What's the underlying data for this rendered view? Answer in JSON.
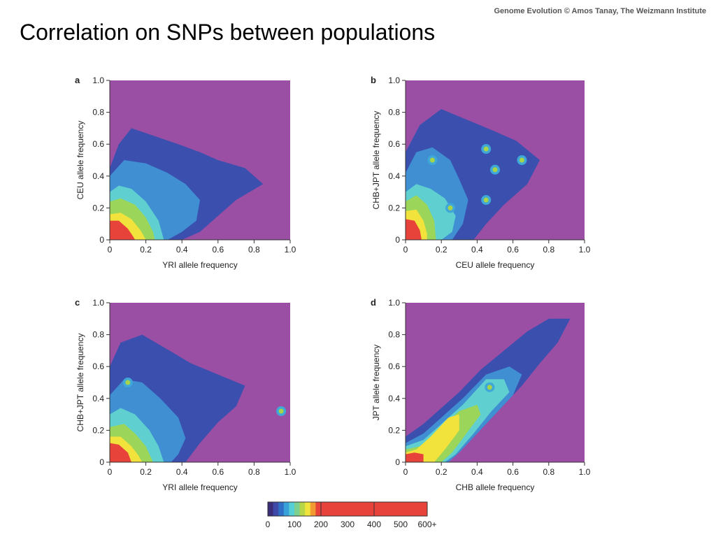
{
  "header": {
    "credit": "Genome Evolution © Amos Tanay, The Weizmann Institute",
    "title": "Correlation on SNPs between populations"
  },
  "colors": {
    "background_density": "#9b4fa4",
    "scale": [
      "#5c3f8a",
      "#3a55b8",
      "#2f74c9",
      "#3fa8d8",
      "#56d1d8",
      "#7fcf8a",
      "#a8d44a",
      "#f0e23a",
      "#f08f30",
      "#e53e35"
    ]
  },
  "chart_data": [
    {
      "type": "heatmap",
      "panel_label": "a",
      "xlabel": "YRI allele frequency",
      "ylabel": "CEU allele frequency",
      "xlim": [
        0,
        1.0
      ],
      "ylim": [
        0,
        1.0
      ],
      "xticks": [
        "0",
        "0.2",
        "0.4",
        "0.6",
        "0.8",
        "1.0"
      ],
      "yticks": [
        "0",
        "0.2",
        "0.4",
        "0.6",
        "0.8",
        "1.0"
      ],
      "density_contours": [
        {
          "level": 50,
          "points": [
            [
              0,
              0
            ],
            [
              0,
              0.45
            ],
            [
              0.05,
              0.6
            ],
            [
              0.12,
              0.7
            ],
            [
              0.25,
              0.65
            ],
            [
              0.38,
              0.6
            ],
            [
              0.5,
              0.55
            ],
            [
              0.6,
              0.5
            ],
            [
              0.75,
              0.45
            ],
            [
              0.85,
              0.35
            ],
            [
              0.7,
              0.25
            ],
            [
              0.6,
              0.15
            ],
            [
              0.5,
              0.05
            ],
            [
              0.4,
              0
            ]
          ]
        },
        {
          "level": 100,
          "points": [
            [
              0,
              0
            ],
            [
              0,
              0.4
            ],
            [
              0.08,
              0.5
            ],
            [
              0.2,
              0.48
            ],
            [
              0.32,
              0.42
            ],
            [
              0.42,
              0.35
            ],
            [
              0.5,
              0.25
            ],
            [
              0.48,
              0.12
            ],
            [
              0.4,
              0.05
            ],
            [
              0.32,
              0
            ]
          ]
        },
        {
          "level": 150,
          "points": [
            [
              0,
              0
            ],
            [
              0,
              0.3
            ],
            [
              0.05,
              0.34
            ],
            [
              0.12,
              0.32
            ],
            [
              0.2,
              0.24
            ],
            [
              0.27,
              0.12
            ],
            [
              0.3,
              0
            ]
          ]
        },
        {
          "level": 200,
          "points": [
            [
              0,
              0
            ],
            [
              0,
              0.24
            ],
            [
              0.06,
              0.26
            ],
            [
              0.14,
              0.22
            ],
            [
              0.2,
              0.14
            ],
            [
              0.24,
              0.05
            ],
            [
              0.25,
              0
            ]
          ]
        },
        {
          "level": 300,
          "points": [
            [
              0,
              0
            ],
            [
              0,
              0.16
            ],
            [
              0.06,
              0.17
            ],
            [
              0.12,
              0.13
            ],
            [
              0.17,
              0.06
            ],
            [
              0.2,
              0
            ]
          ]
        },
        {
          "level": 500,
          "points": [
            [
              0,
              0
            ],
            [
              0,
              0.12
            ],
            [
              0.05,
              0.12
            ],
            [
              0.1,
              0.07
            ],
            [
              0.13,
              0.02
            ],
            [
              0.14,
              0
            ]
          ]
        }
      ]
    },
    {
      "type": "heatmap",
      "panel_label": "b",
      "xlabel": "CEU allele frequency",
      "ylabel": "CHB+JPT allele frequency",
      "xlim": [
        0,
        1.0
      ],
      "ylim": [
        0,
        1.0
      ],
      "xticks": [
        "0",
        "0.2",
        "0.4",
        "0.6",
        "0.8",
        "1.0"
      ],
      "yticks": [
        "0",
        "0.2",
        "0.4",
        "0.6",
        "0.8",
        "1.0"
      ],
      "density_contours": [
        {
          "level": 50,
          "points": [
            [
              0,
              0
            ],
            [
              0,
              0.55
            ],
            [
              0.08,
              0.72
            ],
            [
              0.2,
              0.82
            ],
            [
              0.35,
              0.75
            ],
            [
              0.5,
              0.68
            ],
            [
              0.62,
              0.62
            ],
            [
              0.75,
              0.5
            ],
            [
              0.68,
              0.35
            ],
            [
              0.55,
              0.22
            ],
            [
              0.45,
              0.1
            ],
            [
              0.38,
              0
            ]
          ]
        },
        {
          "level": 100,
          "points": [
            [
              0,
              0
            ],
            [
              0,
              0.42
            ],
            [
              0.06,
              0.55
            ],
            [
              0.15,
              0.58
            ],
            [
              0.25,
              0.5
            ],
            [
              0.3,
              0.38
            ],
            [
              0.35,
              0.25
            ],
            [
              0.32,
              0.1
            ],
            [
              0.26,
              0
            ]
          ]
        },
        {
          "level": 150,
          "points": [
            [
              0,
              0
            ],
            [
              0,
              0.3
            ],
            [
              0.06,
              0.35
            ],
            [
              0.14,
              0.32
            ],
            [
              0.22,
              0.26
            ],
            [
              0.28,
              0.15
            ],
            [
              0.26,
              0.05
            ],
            [
              0.2,
              0
            ]
          ]
        },
        {
          "level": 200,
          "points": [
            [
              0,
              0
            ],
            [
              0,
              0.24
            ],
            [
              0.06,
              0.28
            ],
            [
              0.12,
              0.22
            ],
            [
              0.16,
              0.12
            ],
            [
              0.17,
              0
            ]
          ]
        },
        {
          "level": 300,
          "points": [
            [
              0,
              0
            ],
            [
              0,
              0.18
            ],
            [
              0.06,
              0.19
            ],
            [
              0.1,
              0.12
            ],
            [
              0.12,
              0.04
            ],
            [
              0.12,
              0
            ]
          ]
        },
        {
          "level": 500,
          "points": [
            [
              0,
              0
            ],
            [
              0,
              0.13
            ],
            [
              0.05,
              0.12
            ],
            [
              0.08,
              0.06
            ],
            [
              0.09,
              0
            ]
          ]
        }
      ],
      "hotspots": [
        [
          0.15,
          0.5
        ],
        [
          0.45,
          0.25
        ],
        [
          0.5,
          0.44
        ],
        [
          0.65,
          0.5
        ],
        [
          0.45,
          0.57
        ],
        [
          0.25,
          0.2
        ]
      ]
    },
    {
      "type": "heatmap",
      "panel_label": "c",
      "xlabel": "YRI allele frequency",
      "ylabel": "CHB+JPT allele frequency",
      "xlim": [
        0,
        1.0
      ],
      "ylim": [
        0,
        1.0
      ],
      "xticks": [
        "0",
        "0.2",
        "0.4",
        "0.6",
        "0.8",
        "1.0"
      ],
      "yticks": [
        "0",
        "0.2",
        "0.4",
        "0.6",
        "0.8",
        "1.0"
      ],
      "density_contours": [
        {
          "level": 50,
          "points": [
            [
              0,
              0
            ],
            [
              0,
              0.6
            ],
            [
              0.06,
              0.75
            ],
            [
              0.18,
              0.8
            ],
            [
              0.3,
              0.72
            ],
            [
              0.45,
              0.62
            ],
            [
              0.6,
              0.55
            ],
            [
              0.75,
              0.48
            ],
            [
              0.7,
              0.35
            ],
            [
              0.6,
              0.25
            ],
            [
              0.5,
              0.12
            ],
            [
              0.42,
              0
            ]
          ]
        },
        {
          "level": 100,
          "points": [
            [
              0,
              0
            ],
            [
              0,
              0.42
            ],
            [
              0.08,
              0.52
            ],
            [
              0.18,
              0.5
            ],
            [
              0.28,
              0.4
            ],
            [
              0.38,
              0.28
            ],
            [
              0.42,
              0.15
            ],
            [
              0.38,
              0.05
            ],
            [
              0.34,
              0
            ]
          ]
        },
        {
          "level": 150,
          "points": [
            [
              0,
              0
            ],
            [
              0,
              0.3
            ],
            [
              0.06,
              0.34
            ],
            [
              0.14,
              0.3
            ],
            [
              0.22,
              0.2
            ],
            [
              0.27,
              0.1
            ],
            [
              0.3,
              0
            ]
          ]
        },
        {
          "level": 200,
          "points": [
            [
              0,
              0
            ],
            [
              0,
              0.22
            ],
            [
              0.08,
              0.24
            ],
            [
              0.14,
              0.18
            ],
            [
              0.2,
              0.1
            ],
            [
              0.24,
              0
            ]
          ]
        },
        {
          "level": 300,
          "points": [
            [
              0,
              0
            ],
            [
              0,
              0.16
            ],
            [
              0.06,
              0.16
            ],
            [
              0.12,
              0.1
            ],
            [
              0.16,
              0.04
            ],
            [
              0.18,
              0
            ]
          ]
        },
        {
          "level": 500,
          "points": [
            [
              0,
              0
            ],
            [
              0,
              0.12
            ],
            [
              0.05,
              0.11
            ],
            [
              0.1,
              0.06
            ],
            [
              0.12,
              0
            ]
          ]
        }
      ],
      "hotspots": [
        [
          0.1,
          0.5
        ],
        [
          0.95,
          0.32
        ]
      ]
    },
    {
      "type": "heatmap",
      "panel_label": "d",
      "xlabel": "CHB allele frequency",
      "ylabel": "JPT allele frequency",
      "xlim": [
        0,
        1.0
      ],
      "ylim": [
        0,
        1.0
      ],
      "xticks": [
        "0",
        "0.2",
        "0.4",
        "0.6",
        "0.8",
        "1.0"
      ],
      "yticks": [
        "0",
        "0.2",
        "0.4",
        "0.6",
        "0.8",
        "1.0"
      ],
      "density_contours": [
        {
          "level": 50,
          "points": [
            [
              0,
              0
            ],
            [
              0,
              0.16
            ],
            [
              0.1,
              0.24
            ],
            [
              0.2,
              0.34
            ],
            [
              0.3,
              0.44
            ],
            [
              0.42,
              0.58
            ],
            [
              0.55,
              0.7
            ],
            [
              0.68,
              0.82
            ],
            [
              0.8,
              0.9
            ],
            [
              0.92,
              0.9
            ],
            [
              0.85,
              0.75
            ],
            [
              0.75,
              0.62
            ],
            [
              0.65,
              0.48
            ],
            [
              0.55,
              0.36
            ],
            [
              0.45,
              0.24
            ],
            [
              0.35,
              0.12
            ],
            [
              0.25,
              0.02
            ],
            [
              0.22,
              0
            ]
          ]
        },
        {
          "level": 100,
          "points": [
            [
              0,
              0
            ],
            [
              0,
              0.12
            ],
            [
              0.1,
              0.18
            ],
            [
              0.2,
              0.28
            ],
            [
              0.32,
              0.4
            ],
            [
              0.45,
              0.55
            ],
            [
              0.58,
              0.6
            ],
            [
              0.65,
              0.55
            ],
            [
              0.6,
              0.42
            ],
            [
              0.5,
              0.3
            ],
            [
              0.4,
              0.18
            ],
            [
              0.3,
              0.06
            ],
            [
              0.24,
              0
            ]
          ]
        },
        {
          "level": 150,
          "points": [
            [
              0,
              0
            ],
            [
              0,
              0.1
            ],
            [
              0.1,
              0.14
            ],
            [
              0.2,
              0.24
            ],
            [
              0.32,
              0.36
            ],
            [
              0.45,
              0.52
            ],
            [
              0.55,
              0.52
            ],
            [
              0.58,
              0.44
            ],
            [
              0.48,
              0.32
            ],
            [
              0.38,
              0.18
            ],
            [
              0.28,
              0.05
            ],
            [
              0.22,
              0
            ]
          ]
        },
        {
          "level": 200,
          "points": [
            [
              0,
              0
            ],
            [
              0,
              0.08
            ],
            [
              0.08,
              0.1
            ],
            [
              0.18,
              0.2
            ],
            [
              0.3,
              0.32
            ],
            [
              0.4,
              0.36
            ],
            [
              0.42,
              0.3
            ],
            [
              0.34,
              0.18
            ],
            [
              0.26,
              0.06
            ],
            [
              0.2,
              0
            ]
          ]
        },
        {
          "level": 300,
          "points": [
            [
              0,
              0
            ],
            [
              0,
              0.06
            ],
            [
              0.06,
              0.08
            ],
            [
              0.14,
              0.16
            ],
            [
              0.24,
              0.28
            ],
            [
              0.3,
              0.3
            ],
            [
              0.3,
              0.2
            ],
            [
              0.22,
              0.08
            ],
            [
              0.16,
              0
            ]
          ]
        },
        {
          "level": 500,
          "points": [
            [
              0,
              0
            ],
            [
              0,
              0.05
            ],
            [
              0.05,
              0.06
            ],
            [
              0.1,
              0.05
            ],
            [
              0.1,
              0
            ]
          ]
        }
      ],
      "hotspots": [
        [
          0.47,
          0.47
        ]
      ]
    }
  ],
  "colorbar": {
    "range": [
      0,
      600
    ],
    "ticks": [
      "0",
      "100",
      "200",
      "300",
      "400",
      "500",
      "600+"
    ]
  }
}
